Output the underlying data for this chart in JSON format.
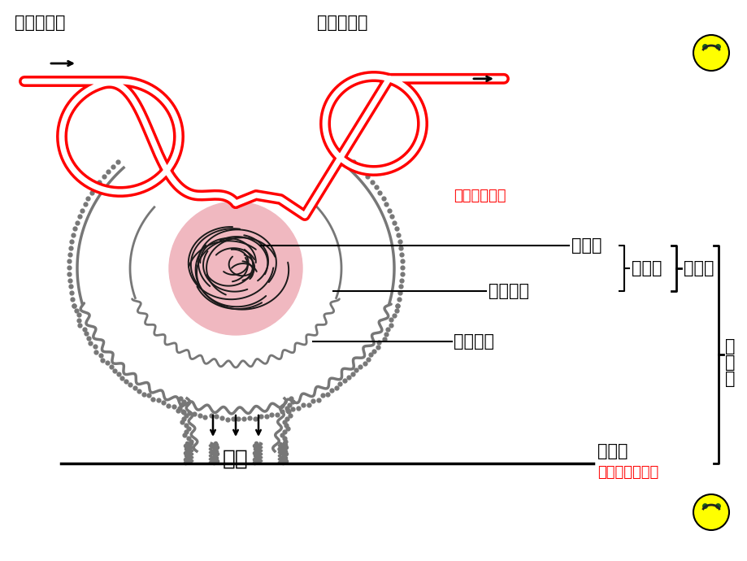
{
  "bg_color": "#ffffff",
  "labels": {
    "ru_qiu": "入球小动脉",
    "chu_qiu": "出球小动脉",
    "shen_xiao_qiu": "肾小球",
    "shen_xiao_nang_bi": "肾小囊壁",
    "shen_xiao_nang": "肾小囊",
    "shen_xiao_nang_qiang": "肾小囊腔",
    "shen_xiao_ti": "肾小体",
    "shen_xiao_guan": "肾小管",
    "shen_dan_wei": "肾单位",
    "yuan_niao": "原尿",
    "lv_guo": "（滤过作用）",
    "zhong_xi_shou": "（重吸收作用）"
  },
  "red_color": "#ff0000",
  "black_color": "#000000",
  "gray_color": "#777777",
  "pink_color": "#f0b8c0",
  "smiley_color": "#ffff00"
}
